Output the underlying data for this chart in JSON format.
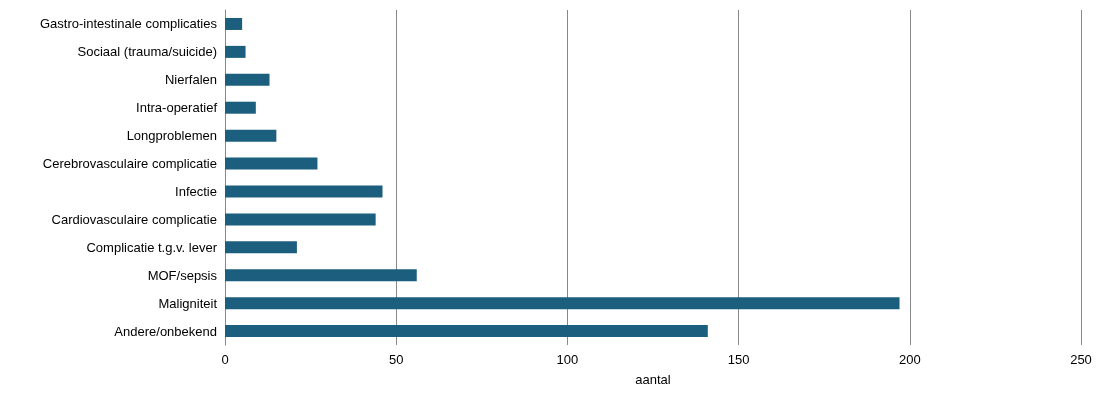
{
  "chart_data": {
    "type": "bar",
    "orientation": "horizontal",
    "xlabel": "aantal",
    "categories": [
      "Gastro-intestinale complicaties",
      "Sociaal (trauma/suicide)",
      "Nierfalen",
      "Intra-operatief",
      "Longproblemen",
      "Cerebrovasculaire complicatie",
      "Infectie",
      "Cardiovasculaire complicatie",
      "Complicatie t.g.v. lever",
      "MOF/sepsis",
      "Maligniteit",
      "Andere/onbekend"
    ],
    "values": [
      5,
      6,
      13,
      9,
      15,
      27,
      46,
      44,
      21,
      56,
      197,
      141
    ],
    "color": "#1b5e7e",
    "xlim": [
      0,
      250
    ],
    "xticks": [
      0,
      50,
      100,
      150,
      200,
      250
    ],
    "grid": "x"
  }
}
